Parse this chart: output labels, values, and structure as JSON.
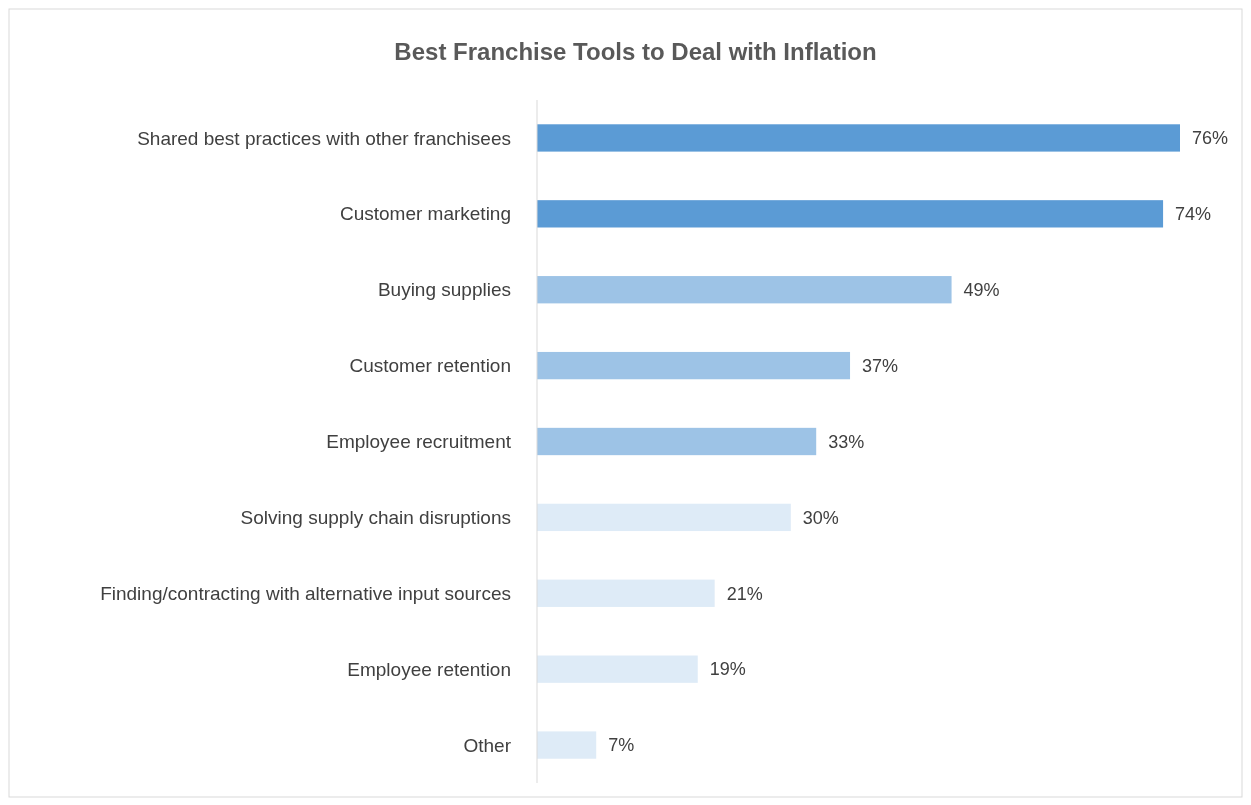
{
  "chart_data": {
    "type": "bar",
    "orientation": "horizontal",
    "title": "Best Franchise Tools to Deal with Inflation",
    "categories": [
      "Shared best practices with other franchisees",
      "Customer marketing",
      "Buying supplies",
      "Customer retention",
      "Employee recruitment",
      "Solving supply chain disruptions",
      "Finding/contracting with alternative input sources",
      "Employee retention",
      "Other"
    ],
    "values": [
      76,
      74,
      49,
      37,
      33,
      30,
      21,
      19,
      7
    ],
    "colors": [
      "#5b9bd5",
      "#5b9bd5",
      "#9dc3e6",
      "#9dc3e6",
      "#9dc3e6",
      "#deebf7",
      "#deebf7",
      "#deebf7",
      "#deebf7"
    ],
    "value_labels": [
      "76%",
      "74%",
      "49%",
      "37%",
      "33%",
      "30%",
      "21%",
      "19%",
      "7%"
    ]
  }
}
